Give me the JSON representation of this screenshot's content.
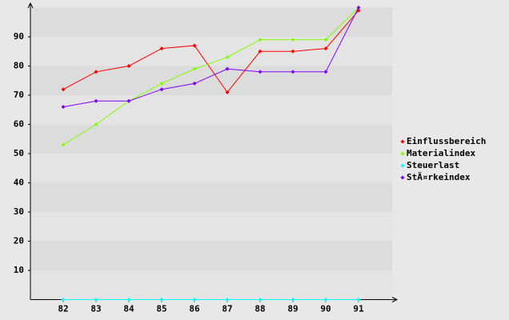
{
  "chart_data": {
    "type": "line",
    "categories": [
      "82",
      "83",
      "84",
      "85",
      "86",
      "87",
      "88",
      "89",
      "90",
      "91"
    ],
    "series": [
      {
        "name": "Einflussbereich",
        "color": "#ff0000",
        "values": [
          72,
          78,
          80,
          86,
          87,
          71,
          85,
          85,
          86,
          99
        ]
      },
      {
        "name": "Materialindex",
        "color": "#80ff00",
        "values": [
          53,
          60,
          68,
          74,
          79,
          83,
          89,
          89,
          89,
          100
        ]
      },
      {
        "name": "Steuerlast",
        "color": "#00ffff",
        "values": [
          0,
          0,
          0,
          0,
          0,
          0,
          0,
          0,
          0,
          0
        ]
      },
      {
        "name": "StÃ¤rkeindex",
        "color": "#8000ff",
        "values": [
          66,
          68,
          68,
          72,
          74,
          79,
          78,
          78,
          78,
          100
        ]
      }
    ],
    "ylim": [
      0,
      100
    ],
    "yticks": [
      10,
      20,
      30,
      40,
      50,
      60,
      70,
      80,
      90
    ],
    "grid": true,
    "legend": "right"
  }
}
